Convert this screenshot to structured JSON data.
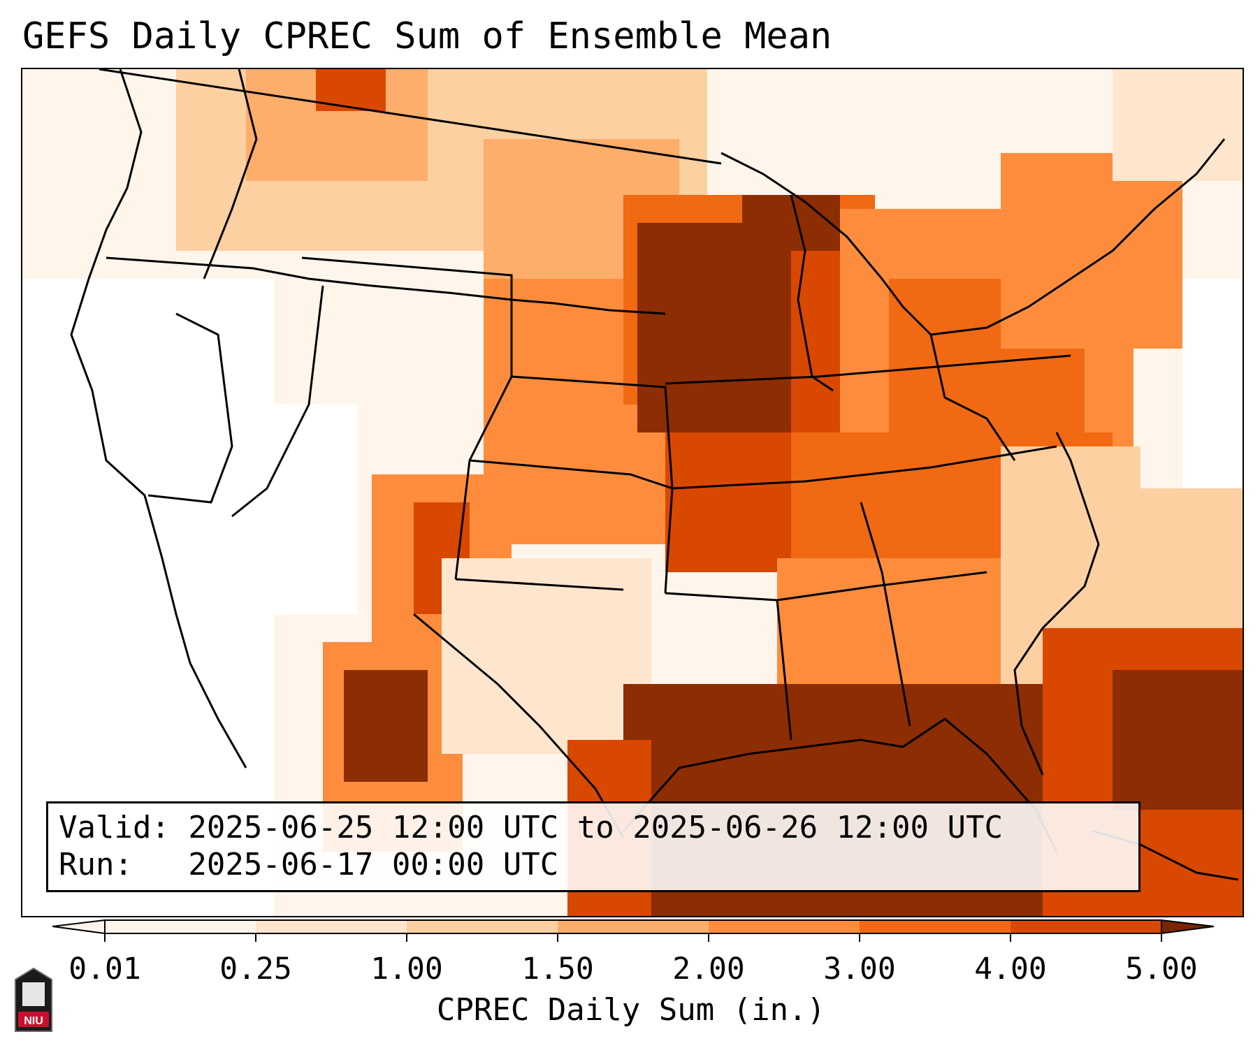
{
  "title": "GEFS Daily CPREC Sum of Ensemble Mean",
  "info": {
    "valid": "Valid: 2025-06-25 12:00 UTC to 2025-06-26 12:00 UTC",
    "run": "Run:   2025-06-17 00:00 UTC"
  },
  "colorbar": {
    "label": "CPREC Daily Sum (in.)",
    "ticks": [
      "0.01",
      "0.25",
      "1.00",
      "1.50",
      "2.00",
      "3.00",
      "4.00",
      "5.00"
    ],
    "colors": [
      "#fff5eb",
      "#fee6ce",
      "#fdd0a2",
      "#fdae6b",
      "#fd8d3c",
      "#f16913",
      "#d94801",
      "#8c2d04"
    ]
  },
  "logo_text": "NIU",
  "colors": {
    "accent": "#8c2d04",
    "background": "#ffffff"
  }
}
